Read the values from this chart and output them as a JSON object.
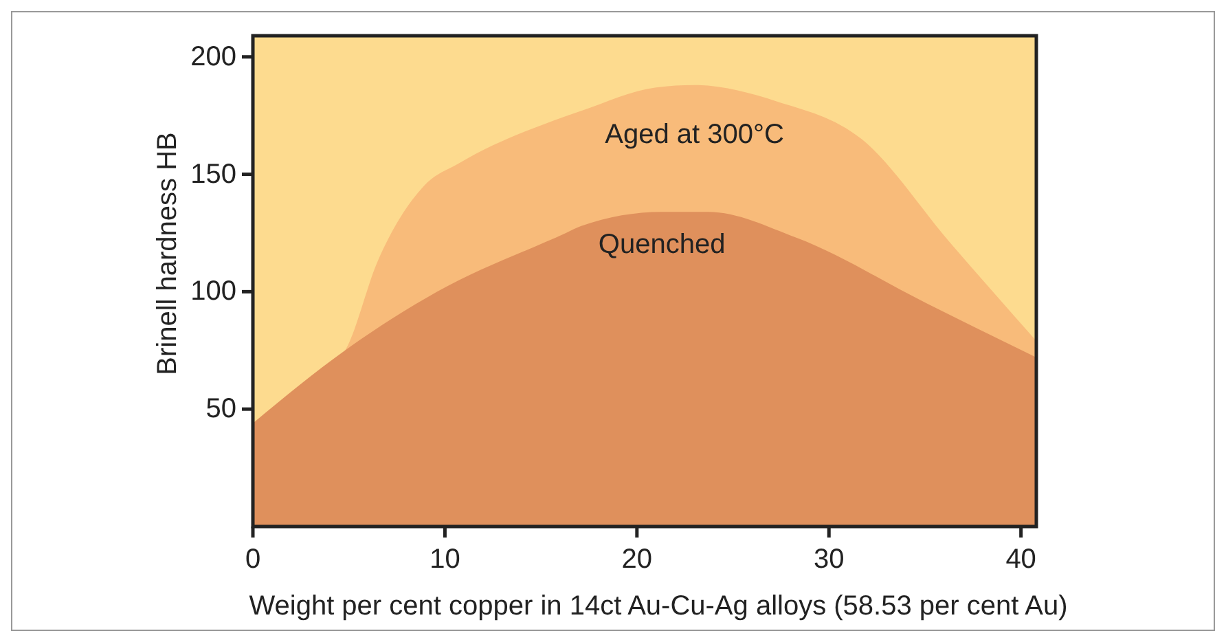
{
  "chart_data": {
    "type": "area",
    "xlabel": "Weight per cent copper in 14ct Au-Cu-Ag alloys (58.53 per cent Au)",
    "ylabel": "Brinell hardness HB",
    "xlim": [
      0,
      40.8
    ],
    "xticks": [
      0,
      10,
      20,
      30,
      40
    ],
    "ylim": [
      0,
      209
    ],
    "yticks": [
      50,
      100,
      150,
      200
    ],
    "series": [
      {
        "name": "Aged at 300°C",
        "color": "#f8bb7a",
        "x": [
          0,
          4.8,
          6.5,
          8.9,
          10.8,
          15.7,
          17.1,
          21,
          23,
          27.3,
          31.7,
          36.3,
          40.8
        ],
        "values": [
          44,
          75,
          113,
          145,
          155,
          173,
          177,
          187,
          188,
          181,
          165,
          121,
          79
        ]
      },
      {
        "name": "Quenched",
        "color": "#df905c",
        "x": [
          0,
          4.8,
          9.6,
          16.3,
          17.1,
          21.3,
          23.7,
          28.3,
          35.1,
          40.8
        ],
        "values": [
          44,
          75,
          100,
          125,
          128,
          134,
          134,
          123,
          95,
          72
        ]
      }
    ],
    "bands": [
      {
        "axis": "y",
        "from": 0,
        "to": 209,
        "color": "#fddb8f"
      }
    ],
    "legend": false,
    "grid": false
  }
}
